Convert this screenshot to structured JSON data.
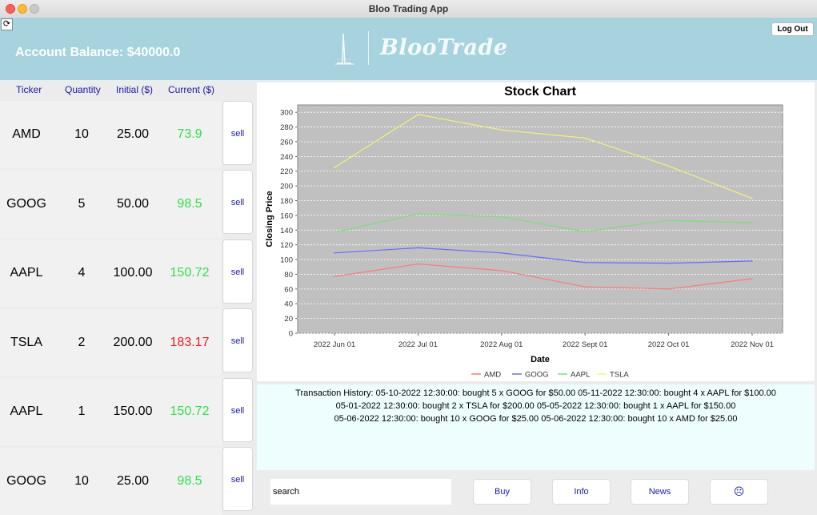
{
  "window": {
    "title": "Bloo Trading App"
  },
  "header": {
    "refresh_icon": "refresh-icon",
    "balance": "Account Balance: $40000.0",
    "logo_text": "BlooTrade",
    "logout_label": "Log Out"
  },
  "portfolio": {
    "headers": [
      "Ticker",
      "Quantity",
      "Initial ($)",
      "Current ($)"
    ],
    "rows": [
      {
        "ticker": "AMD",
        "quantity": "10",
        "initial": "25.00",
        "current": "73.9",
        "trend": "up",
        "sell": "sell"
      },
      {
        "ticker": "GOOG",
        "quantity": "5",
        "initial": "50.00",
        "current": "98.5",
        "trend": "up",
        "sell": "sell"
      },
      {
        "ticker": "AAPL",
        "quantity": "4",
        "initial": "100.00",
        "current": "150.72",
        "trend": "up",
        "sell": "sell"
      },
      {
        "ticker": "TSLA",
        "quantity": "2",
        "initial": "200.00",
        "current": "183.17",
        "trend": "down",
        "sell": "sell"
      },
      {
        "ticker": "AAPL",
        "quantity": "1",
        "initial": "150.00",
        "current": "150.72",
        "trend": "up",
        "sell": "sell"
      },
      {
        "ticker": "GOOG",
        "quantity": "10",
        "initial": "25.00",
        "current": "98.5",
        "trend": "up",
        "sell": "sell"
      }
    ],
    "colors": {
      "up": "#2fe04a",
      "down": "#f21b1b"
    }
  },
  "chart_data": {
    "type": "line",
    "title": "Stock Chart",
    "xlabel": "Date",
    "ylabel": "Closing Price",
    "categories": [
      "2022 Jun 01",
      "2022 Jul 01",
      "2022 Aug 01",
      "2022 Sept 01",
      "2022 Oct 01",
      "2022 Nov 01"
    ],
    "ylim": [
      0,
      310
    ],
    "yticks": [
      0,
      20,
      40,
      60,
      80,
      100,
      120,
      140,
      160,
      180,
      200,
      220,
      240,
      260,
      280,
      300
    ],
    "grid": true,
    "legend_position": "bottom",
    "plot_background": "#c0c0c0",
    "series": [
      {
        "name": "AMD",
        "color": "#ff7777",
        "values": [
          77,
          94,
          85,
          63,
          60,
          74
        ]
      },
      {
        "name": "GOOG",
        "color": "#6a6aff",
        "values": [
          109,
          116,
          109,
          96,
          95,
          98
        ]
      },
      {
        "name": "AAPL",
        "color": "#77e077",
        "values": [
          137,
          162,
          158,
          138,
          153,
          150
        ]
      },
      {
        "name": "TSLA",
        "color": "#f2f277",
        "values": [
          225,
          297,
          276,
          265,
          227,
          183
        ]
      }
    ]
  },
  "transactions": {
    "lines": [
      "Transaction History: 05-10-2022 12:30:00: bought 5 x GOOG for $50.00  05-11-2022 12:30:00: bought 4 x AAPL for $100.00",
      "05-01-2022 12:30:00: bought 2 x TSLA for $200.00  05-05-2022 12:30:00: bought 1 x AAPL for $150.00",
      "05-06-2022 12:30:00: bought 10 x GOOG for $25.00  05-06-2022 12:30:00: bought 10 x AMD for $25.00"
    ]
  },
  "actions": {
    "search_value": "search",
    "buy_label": "Buy",
    "info_label": "Info",
    "news_label": "News",
    "face_label": "☹",
    "face_icon": "sad-face-icon"
  }
}
